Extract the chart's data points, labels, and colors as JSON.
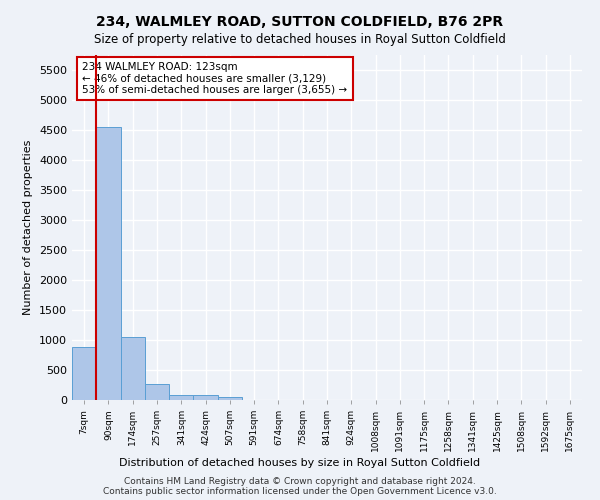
{
  "title": "234, WALMLEY ROAD, SUTTON COLDFIELD, B76 2PR",
  "subtitle": "Size of property relative to detached houses in Royal Sutton Coldfield",
  "xlabel": "Distribution of detached houses by size in Royal Sutton Coldfield",
  "ylabel": "Number of detached properties",
  "bar_color": "#aec6e8",
  "bar_edge_color": "#5a9fd4",
  "vline_color": "#cc0000",
  "vline_x_idx": 1,
  "annotation_text": "234 WALMLEY ROAD: 123sqm\n← 46% of detached houses are smaller (3,129)\n53% of semi-detached houses are larger (3,655) →",
  "annotation_box_color": "#ffffff",
  "annotation_box_edge": "#cc0000",
  "bin_labels": [
    "7sqm",
    "90sqm",
    "174sqm",
    "257sqm",
    "341sqm",
    "424sqm",
    "507sqm",
    "591sqm",
    "674sqm",
    "758sqm",
    "841sqm",
    "924sqm",
    "1008sqm",
    "1091sqm",
    "1175sqm",
    "1258sqm",
    "1341sqm",
    "1425sqm",
    "1508sqm",
    "1592sqm",
    "1675sqm"
  ],
  "bar_heights": [
    880,
    4550,
    1050,
    270,
    90,
    80,
    50,
    0,
    0,
    0,
    0,
    0,
    0,
    0,
    0,
    0,
    0,
    0,
    0,
    0,
    0
  ],
  "ylim": [
    0,
    5750
  ],
  "yticks": [
    0,
    500,
    1000,
    1500,
    2000,
    2500,
    3000,
    3500,
    4000,
    4500,
    5000,
    5500
  ],
  "footnote1": "Contains HM Land Registry data © Crown copyright and database right 2024.",
  "footnote2": "Contains public sector information licensed under the Open Government Licence v3.0.",
  "background_color": "#eef2f8",
  "grid_color": "#ffffff"
}
